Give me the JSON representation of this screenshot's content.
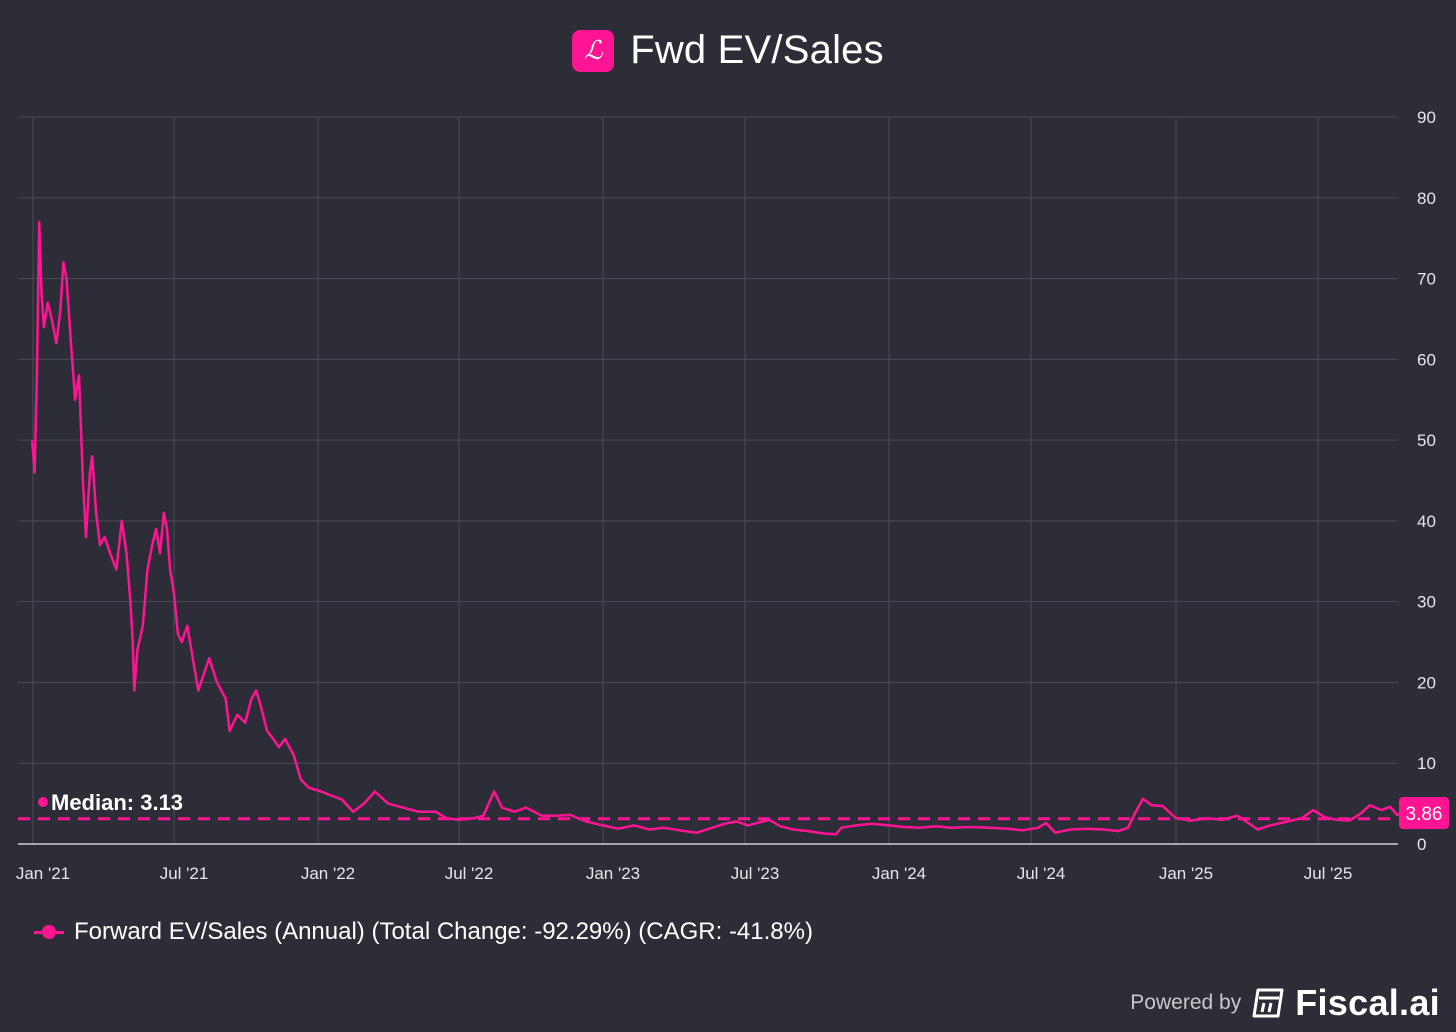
{
  "header": {
    "title": "Fwd EV/Sales",
    "logo_glyph": "ℒ"
  },
  "chart_data": {
    "type": "line",
    "title": "Fwd EV/Sales",
    "ylim": [
      0,
      90
    ],
    "y_ticks": [
      "0",
      "10",
      "20",
      "30",
      "40",
      "50",
      "60",
      "70",
      "80",
      "90"
    ],
    "x_ticks": [
      "Jan '21",
      "Jul '21",
      "Jan '22",
      "Jul '22",
      "Jan '23",
      "Jul '23",
      "Jan '24",
      "Jul '24",
      "Jan '25",
      "Jul '25"
    ],
    "x_range": [
      "2020-12-31",
      "2025-10-15"
    ],
    "median": {
      "label": "Median: 3.13",
      "value": 3.13
    },
    "last_value": {
      "label": "3.86",
      "value": 3.86
    },
    "series": [
      {
        "name": "Forward EV/Sales (Annual)",
        "color": "#ff1493",
        "points": [
          [
            "2020-12-31",
            50
          ],
          [
            "2021-01-03",
            46
          ],
          [
            "2021-01-06",
            58
          ],
          [
            "2021-01-09",
            77
          ],
          [
            "2021-01-12",
            68
          ],
          [
            "2021-01-15",
            64
          ],
          [
            "2021-01-20",
            67
          ],
          [
            "2021-01-25",
            65
          ],
          [
            "2021-01-31",
            62
          ],
          [
            "2021-02-05",
            66
          ],
          [
            "2021-02-09",
            72
          ],
          [
            "2021-02-13",
            70
          ],
          [
            "2021-02-18",
            63
          ],
          [
            "2021-02-24",
            55
          ],
          [
            "2021-03-01",
            58
          ],
          [
            "2021-03-06",
            45
          ],
          [
            "2021-03-10",
            38
          ],
          [
            "2021-03-15",
            46
          ],
          [
            "2021-03-18",
            48
          ],
          [
            "2021-03-23",
            41
          ],
          [
            "2021-03-28",
            37
          ],
          [
            "2021-04-03",
            38
          ],
          [
            "2021-04-10",
            36
          ],
          [
            "2021-04-18",
            34
          ],
          [
            "2021-04-25",
            40
          ],
          [
            "2021-05-01",
            36
          ],
          [
            "2021-05-06",
            30
          ],
          [
            "2021-05-09",
            25
          ],
          [
            "2021-05-11",
            19
          ],
          [
            "2021-05-15",
            24
          ],
          [
            "2021-05-22",
            27
          ],
          [
            "2021-05-28",
            34
          ],
          [
            "2021-06-03",
            37
          ],
          [
            "2021-06-08",
            39
          ],
          [
            "2021-06-13",
            36
          ],
          [
            "2021-06-18",
            41
          ],
          [
            "2021-06-22",
            39
          ],
          [
            "2021-06-26",
            34
          ],
          [
            "2021-07-01",
            31
          ],
          [
            "2021-07-06",
            26
          ],
          [
            "2021-07-11",
            25
          ],
          [
            "2021-07-18",
            27
          ],
          [
            "2021-07-25",
            23
          ],
          [
            "2021-08-01",
            19
          ],
          [
            "2021-08-08",
            21
          ],
          [
            "2021-08-15",
            23
          ],
          [
            "2021-08-25",
            20
          ],
          [
            "2021-09-05",
            18
          ],
          [
            "2021-09-10",
            14
          ],
          [
            "2021-09-20",
            16
          ],
          [
            "2021-09-30",
            15
          ],
          [
            "2021-10-08",
            18
          ],
          [
            "2021-10-14",
            19
          ],
          [
            "2021-10-20",
            17
          ],
          [
            "2021-10-28",
            14
          ],
          [
            "2021-11-05",
            13
          ],
          [
            "2021-11-12",
            12
          ],
          [
            "2021-11-20",
            13
          ],
          [
            "2021-12-01",
            11
          ],
          [
            "2021-12-10",
            8
          ],
          [
            "2021-12-20",
            7
          ],
          [
            "2022-01-05",
            6.5
          ],
          [
            "2022-01-18",
            6
          ],
          [
            "2022-02-01",
            5.5
          ],
          [
            "2022-02-15",
            4
          ],
          [
            "2022-03-01",
            5
          ],
          [
            "2022-03-15",
            6.5
          ],
          [
            "2022-04-01",
            5
          ],
          [
            "2022-04-20",
            4.5
          ],
          [
            "2022-05-10",
            4
          ],
          [
            "2022-06-01",
            4
          ],
          [
            "2022-06-15",
            3.2
          ],
          [
            "2022-07-01",
            3
          ],
          [
            "2022-07-20",
            3.2
          ],
          [
            "2022-08-01",
            3.5
          ],
          [
            "2022-08-15",
            6.5
          ],
          [
            "2022-08-25",
            4.5
          ],
          [
            "2022-09-10",
            4
          ],
          [
            "2022-09-25",
            4.5
          ],
          [
            "2022-10-15",
            3.5
          ],
          [
            "2022-11-01",
            3.5
          ],
          [
            "2022-11-20",
            3.6
          ],
          [
            "2022-12-10",
            2.8
          ],
          [
            "2023-01-01",
            2.3
          ],
          [
            "2023-01-20",
            1.9
          ],
          [
            "2023-02-10",
            2.3
          ],
          [
            "2023-03-01",
            1.8
          ],
          [
            "2023-03-20",
            2.0
          ],
          [
            "2023-04-15",
            1.6
          ],
          [
            "2023-05-01",
            1.4
          ],
          [
            "2023-05-20",
            2.0
          ],
          [
            "2023-06-05",
            2.5
          ],
          [
            "2023-06-20",
            2.8
          ],
          [
            "2023-07-05",
            2.3
          ],
          [
            "2023-07-20",
            2.7
          ],
          [
            "2023-08-01",
            3.0
          ],
          [
            "2023-08-15",
            2.2
          ],
          [
            "2023-09-01",
            1.8
          ],
          [
            "2023-09-20",
            1.6
          ],
          [
            "2023-10-10",
            1.3
          ],
          [
            "2023-10-25",
            1.2
          ],
          [
            "2023-11-01",
            2.0
          ],
          [
            "2023-11-20",
            2.3
          ],
          [
            "2023-12-10",
            2.5
          ],
          [
            "2024-01-01",
            2.3
          ],
          [
            "2024-01-20",
            2.1
          ],
          [
            "2024-02-10",
            2.0
          ],
          [
            "2024-03-01",
            2.2
          ],
          [
            "2024-03-20",
            2.0
          ],
          [
            "2024-04-15",
            2.1
          ],
          [
            "2024-05-10",
            2.0
          ],
          [
            "2024-06-01",
            1.9
          ],
          [
            "2024-06-20",
            1.7
          ],
          [
            "2024-07-10",
            2.0
          ],
          [
            "2024-07-20",
            2.6
          ],
          [
            "2024-08-01",
            1.4
          ],
          [
            "2024-08-20",
            1.8
          ],
          [
            "2024-09-10",
            1.9
          ],
          [
            "2024-10-01",
            1.8
          ],
          [
            "2024-10-20",
            1.6
          ],
          [
            "2024-11-01",
            2.0
          ],
          [
            "2024-11-10",
            3.8
          ],
          [
            "2024-11-20",
            5.6
          ],
          [
            "2024-12-01",
            4.8
          ],
          [
            "2024-12-15",
            4.7
          ],
          [
            "2025-01-01",
            3.2
          ],
          [
            "2025-01-20",
            2.9
          ],
          [
            "2025-02-10",
            3.2
          ],
          [
            "2025-03-01",
            3.0
          ],
          [
            "2025-03-20",
            3.5
          ],
          [
            "2025-04-05",
            2.5
          ],
          [
            "2025-04-15",
            1.8
          ],
          [
            "2025-05-01",
            2.3
          ],
          [
            "2025-05-20",
            2.7
          ],
          [
            "2025-06-10",
            3.2
          ],
          [
            "2025-06-25",
            4.2
          ],
          [
            "2025-07-10",
            3.3
          ],
          [
            "2025-07-25",
            3.0
          ],
          [
            "2025-08-10",
            2.9
          ],
          [
            "2025-08-25",
            3.8
          ],
          [
            "2025-09-05",
            4.8
          ],
          [
            "2025-09-20",
            4.2
          ],
          [
            "2025-10-01",
            4.6
          ],
          [
            "2025-10-10",
            3.6
          ],
          [
            "2025-10-15",
            3.86
          ]
        ]
      }
    ],
    "legend": "bottom-left",
    "grid": true
  },
  "legend": {
    "label": "Forward EV/Sales (Annual) (Total Change: -92.29%) (CAGR: -41.8%)"
  },
  "footer": {
    "powered_by": "Powered by",
    "brand": "Fiscal.ai"
  },
  "colors": {
    "accent": "#ff1493",
    "background": "#2c2d36",
    "grid": "#4a4b56"
  }
}
